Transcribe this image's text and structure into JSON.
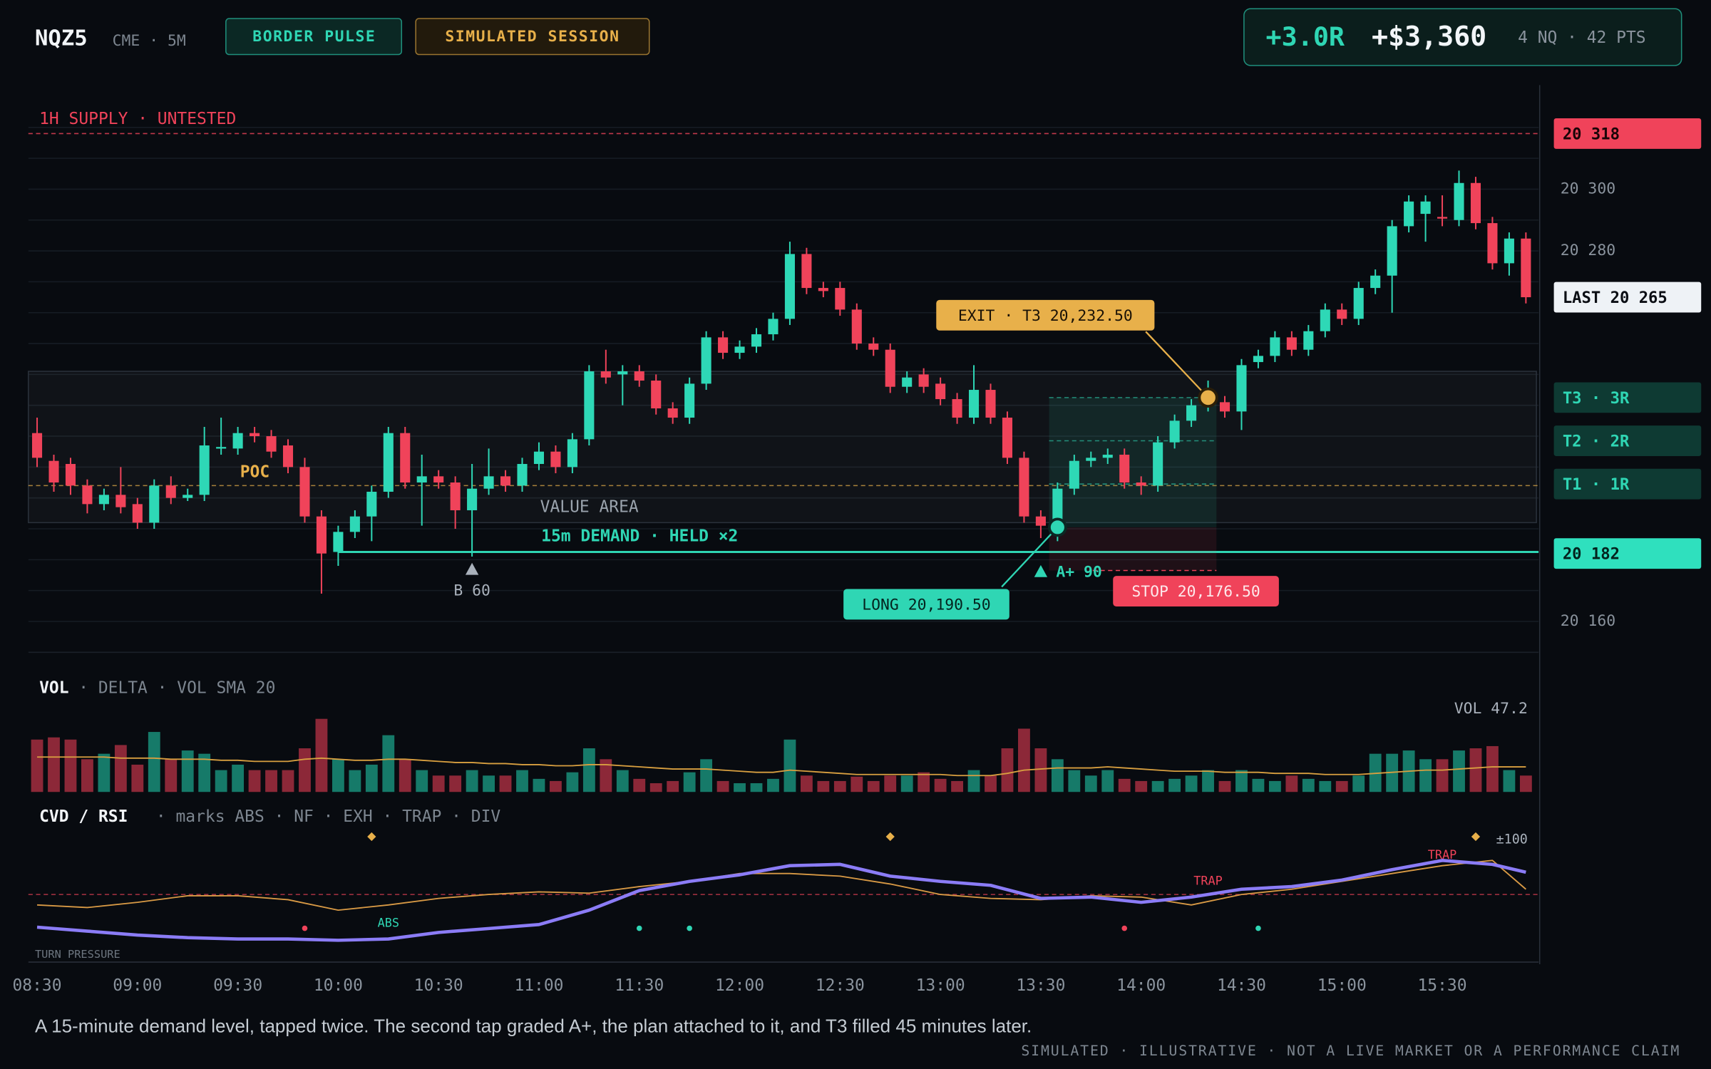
{
  "header": {
    "symbol": "NQZ5",
    "venue": "CME · 5M",
    "badges": [
      {
        "text": "BORDER PULSE",
        "color": "#2fd6b4"
      },
      {
        "text": "SIMULATED SESSION",
        "color": "#e8b04a"
      }
    ],
    "stats": {
      "r": "+3.0R",
      "pnl": "+$3,360",
      "size": "4 NQ · 42 PTS"
    }
  },
  "chart_data": {
    "type": "candlestick",
    "categories": [
      "08:30",
      null,
      null,
      null,
      null,
      null,
      "09:00",
      null,
      null,
      null,
      null,
      null,
      "09:30",
      null,
      null,
      null,
      null,
      null,
      "10:00",
      null,
      null,
      null,
      null,
      null,
      "10:30",
      null,
      null,
      null,
      null,
      null,
      "11:00",
      null,
      null,
      null,
      null,
      null,
      "11:30",
      null,
      null,
      null,
      null,
      null,
      "12:00",
      null,
      null,
      null,
      null,
      null,
      "12:30",
      null,
      null,
      null,
      null,
      null,
      "13:00",
      null,
      null,
      null,
      null,
      null,
      "13:30",
      null,
      null,
      null,
      null,
      null,
      "14:00",
      null,
      null,
      null,
      null,
      null,
      "14:30",
      null,
      null,
      null,
      null,
      null,
      "15:00",
      null,
      null,
      null,
      null,
      null,
      "15:30",
      null,
      null,
      null,
      null,
      null
    ],
    "open": [
      20221,
      20212,
      20211,
      20204,
      20198,
      20201,
      20198,
      20192,
      20204,
      20200,
      20201,
      20216,
      20216,
      20221,
      20220,
      20217,
      20210,
      20194,
      20182.5,
      20189,
      20194,
      20202,
      20221,
      20205,
      20207,
      20205,
      20196,
      20203,
      20207,
      20204,
      20211,
      20215,
      20210,
      20219,
      20241,
      20240,
      20241,
      20238,
      20229,
      20226,
      20237,
      20252,
      20247,
      20249,
      20253,
      20258,
      20279,
      20268,
      20268,
      20261,
      20250,
      20248,
      20236,
      20240,
      20237,
      20232,
      20226,
      20235,
      20226,
      20213,
      20194,
      20193,
      20203,
      20212,
      20213,
      20214,
      20205,
      20204,
      20218,
      20225,
      20230,
      20231,
      20228,
      20244,
      20246,
      20252,
      20248,
      20254,
      20261,
      20258,
      20268,
      20272,
      20288,
      20292,
      20291,
      20290,
      20302,
      20289,
      20276,
      20284
    ],
    "high": [
      20226,
      20214,
      20213,
      20206,
      20203,
      20210,
      20200,
      20206,
      20207,
      20203,
      20223,
      20226,
      20223,
      20223,
      20222,
      20219,
      20213,
      20196,
      20191,
      20196,
      20204,
      20223,
      20223,
      20214,
      20209,
      20207,
      20211,
      20216,
      20209,
      20213,
      20218,
      20217,
      20221,
      20243,
      20248,
      20243,
      20243,
      20240,
      20231,
      20239,
      20254,
      20254,
      20251,
      20255,
      20260,
      20283,
      20281,
      20270,
      20270,
      20263,
      20252,
      20250,
      20241,
      20242,
      20239,
      20234,
      20243,
      20237,
      20228,
      20215,
      20196,
      20205,
      20214,
      20215,
      20216,
      20216,
      20207,
      20220,
      20227,
      20232,
      20238,
      20233,
      20245,
      20248,
      20254,
      20254,
      20256,
      20263,
      20263,
      20270,
      20274,
      20290,
      20298,
      20298,
      20298,
      20306,
      20304,
      20291,
      20286,
      20286
    ],
    "low": [
      20210,
      20202,
      20201,
      20195,
      20196,
      20195,
      20190,
      20190,
      20198,
      20199,
      20199,
      20214,
      20214,
      20218,
      20213,
      20208,
      20192,
      20169,
      20178,
      20187,
      20186,
      20200,
      20203,
      20191,
      20203,
      20190,
      20181,
      20201,
      20202,
      20202,
      20209,
      20208,
      20208,
      20217,
      20237,
      20230,
      20236,
      20227,
      20224,
      20224,
      20235,
      20245,
      20245,
      20247,
      20251,
      20256,
      20266,
      20265,
      20259,
      20248,
      20246,
      20234,
      20234,
      20234,
      20230,
      20224,
      20224,
      20224,
      20211,
      20192,
      20187,
      20186,
      20201,
      20210,
      20211,
      20203,
      20201,
      20202,
      20216,
      20223,
      20228,
      20226,
      20222,
      20242,
      20244,
      20246,
      20246,
      20252,
      20256,
      20256,
      20266,
      20260,
      20286,
      20283,
      20288,
      20288,
      20287,
      20274,
      20272,
      20263
    ],
    "close": [
      20213,
      20205,
      20204,
      20198,
      20201,
      20197,
      20192,
      20204,
      20200,
      20201,
      20217,
      20216.5,
      20221,
      20220,
      20215,
      20210,
      20194,
      20182,
      20189,
      20194,
      20202,
      20221,
      20205,
      20207,
      20205,
      20196,
      20203,
      20207,
      20204,
      20211,
      20215,
      20210,
      20219,
      20241,
      20239,
      20241,
      20238,
      20229,
      20226,
      20237,
      20252,
      20247,
      20249,
      20253,
      20258,
      20279,
      20268,
      20267,
      20261,
      20250,
      20248,
      20236,
      20239,
      20236,
      20232,
      20226,
      20235,
      20226,
      20213,
      20194,
      20191,
      20203,
      20212,
      20213,
      20214,
      20205,
      20204,
      20218,
      20225,
      20230,
      20233,
      20228,
      20243,
      20246,
      20252,
      20248,
      20254,
      20261,
      20258,
      20268,
      20272,
      20288,
      20296,
      20296,
      20290.5,
      20302,
      20289,
      20276,
      20284,
      20265
    ],
    "up_color": "#2ed8b6",
    "down_color": "#f0435a",
    "ylim": [
      20150,
      20333
    ],
    "yticks": [
      {
        "value": 20300,
        "label": "20 300"
      },
      {
        "value": 20280,
        "label": "20 280"
      },
      {
        "value": 20160,
        "label": "20 160"
      }
    ],
    "gridlines": [
      20160,
      20170,
      20180,
      20190,
      20200,
      20210,
      20220,
      20230,
      20240,
      20250,
      20260,
      20270,
      20280,
      20290,
      20300,
      20310,
      20320
    ],
    "supply": {
      "value": 20318,
      "label": "1H SUPPLY · UNTESTED",
      "color": "#f0435a"
    },
    "poc": {
      "value": 20204,
      "label": "POC",
      "color": "#e8b04a"
    },
    "value_area": {
      "high": 20241,
      "low": 20192,
      "label": "VALUE AREA"
    },
    "demand": {
      "value": 20182.5,
      "from": 18,
      "label": "15m DEMAND · HELD ×2",
      "color": "#2fd6b4"
    },
    "signals": [
      {
        "at": 26,
        "label": "B 60",
        "color": "#a9b1bb"
      },
      {
        "at": 60,
        "label": "A+ 90",
        "color": "#2fd6b4"
      }
    ],
    "trade": {
      "entry": 20190.5,
      "stop": 20176.5,
      "t1": 20204.5,
      "t2": 20218.5,
      "target": 20232.5,
      "entry_at": 61,
      "exit_at": 70,
      "entry_label": "LONG 20,190.50",
      "stop_label": "STOP 20,176.50",
      "exit_label": "EXIT · T3 20,232.50"
    },
    "price_tags": [
      {
        "value": 20318,
        "label": "20 318",
        "bg": "#f0435a",
        "fg": "#1a0508"
      },
      {
        "value": 20265,
        "label": "LAST 20 265",
        "bg": "#eef2f6",
        "fg": "#0b0e14"
      },
      {
        "value": 20232.5,
        "label": "T3 · 3R",
        "bg": "#0e3a33",
        "fg": "#2fd6b4"
      },
      {
        "value": 20218.5,
        "label": "T2 · 2R",
        "bg": "#0e3a33",
        "fg": "#2fd6b4"
      },
      {
        "value": 20204.5,
        "label": "T1 · 1R",
        "bg": "#0e3a33",
        "fg": "#2fd6b4"
      },
      {
        "value": 20182,
        "label": "20 182",
        "bg": "#2fe0be",
        "fg": "#04231e"
      }
    ],
    "volume": {
      "title": "VOL",
      "subtitle": "· DELTA · VOL SMA 20",
      "value_label": "VOL 47.2",
      "ylim": [
        0,
        70
      ],
      "up_color": "#167a69",
      "down_color": "#8c2838",
      "sma_color": "#d9a040",
      "values": [
        48,
        50,
        48,
        30,
        35,
        43,
        25,
        55,
        30,
        38,
        35,
        20,
        25,
        20,
        20,
        20,
        40,
        67,
        30,
        20,
        25,
        52,
        30,
        20,
        15,
        15,
        20,
        15,
        15,
        20,
        12,
        10,
        18,
        40,
        30,
        20,
        12,
        8,
        10,
        18,
        30,
        10,
        8,
        8,
        12,
        48,
        15,
        10,
        10,
        14,
        10,
        15,
        15,
        18,
        12,
        10,
        20,
        15,
        40,
        58,
        40,
        30,
        20,
        15,
        20,
        12,
        10,
        10,
        12,
        15,
        20,
        10,
        20,
        12,
        10,
        15,
        12,
        10,
        10,
        15,
        35,
        35,
        38,
        30,
        30,
        38,
        40,
        42,
        20,
        15
      ],
      "sma": [
        32,
        32,
        32,
        32,
        32,
        31,
        31,
        31,
        30,
        30,
        30,
        29,
        29,
        28,
        28,
        28,
        30,
        31,
        30,
        29,
        29,
        30,
        30,
        29,
        28,
        27,
        27,
        26,
        26,
        25,
        25,
        24,
        24,
        25,
        25,
        24,
        23,
        22,
        21,
        21,
        21,
        20,
        19,
        18,
        18,
        20,
        19,
        18,
        17,
        16,
        16,
        16,
        16,
        16,
        16,
        15,
        15,
        15,
        17,
        20,
        21,
        22,
        22,
        22,
        23,
        22,
        21,
        20,
        19,
        19,
        19,
        18,
        18,
        18,
        17,
        17,
        17,
        16,
        16,
        16,
        17,
        18,
        19,
        20,
        20,
        21,
        22,
        23,
        23,
        23
      ]
    },
    "cvd": {
      "title": "CVD / RSI",
      "subtitle": "· marks ABS · NF · EXH · TRAP · DIV",
      "range_label": "±100",
      "footer_label": "TURN PRESSURE",
      "ylim": [
        0,
        100
      ],
      "level": 50,
      "x": [
        0,
        3,
        6,
        9,
        12,
        15,
        18,
        21,
        24,
        27,
        30,
        33,
        36,
        39,
        42,
        45,
        48,
        51,
        54,
        57,
        60,
        63,
        66,
        69,
        72,
        75,
        78,
        81,
        84,
        87,
        89
      ],
      "lines": [
        {
          "color": "#8b7cf6",
          "width": 3,
          "values": [
            25,
            22,
            19,
            17,
            16,
            16,
            15,
            16,
            21,
            24,
            27,
            38,
            53,
            60,
            65,
            72,
            73,
            64,
            60,
            57,
            47,
            48,
            44,
            48,
            54,
            56,
            61,
            69,
            76,
            73,
            67
          ]
        },
        {
          "color": "#d99a45",
          "width": 1.2,
          "values": [
            42,
            40,
            44,
            49,
            49,
            46,
            38,
            42,
            47,
            50,
            52,
            51,
            56,
            60,
            66,
            66,
            64,
            58,
            50,
            47,
            46,
            49,
            48,
            42,
            50,
            54,
            60,
            66,
            72,
            76,
            54
          ]
        }
      ],
      "marks": [
        {
          "at": 21,
          "level": 28,
          "label": "ABS",
          "color": "#2fd6b4"
        },
        {
          "at": 70,
          "level": 60,
          "label": "TRAP",
          "color": "#f0435a"
        },
        {
          "at": 84,
          "level": 80,
          "label": "TRAP",
          "color": "#f0435a"
        }
      ],
      "diamonds": [
        20,
        51,
        86
      ],
      "dots": [
        {
          "at": 16,
          "color": "#f0435a"
        },
        {
          "at": 36,
          "color": "#2fd6b4"
        },
        {
          "at": 39,
          "color": "#2fd6b4"
        },
        {
          "at": 65,
          "color": "#f0435a"
        },
        {
          "at": 73,
          "color": "#2fd6b4"
        }
      ]
    }
  },
  "caption": "A 15-minute demand level, tapped twice. The second tap graded A+, the plan attached to it, and T3 filled 45 minutes later.",
  "footer": "SIMULATED · ILLUSTRATIVE · NOT A LIVE MARKET OR A PERFORMANCE CLAIM"
}
